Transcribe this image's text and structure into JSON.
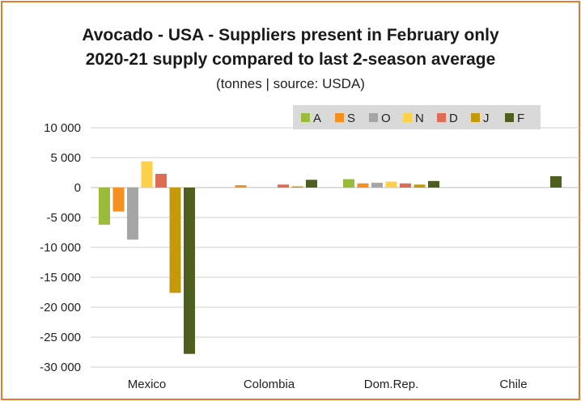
{
  "colors": {
    "A": "#9bbb3b",
    "S": "#f5901e",
    "O": "#a5a5a5",
    "N": "#fdd24a",
    "D": "#e06c55",
    "J": "#c59a0a",
    "F": "#4e5e1e",
    "frame": "#e37b2c",
    "legend_bg": "#d9d9d9",
    "grid": "#d0d0d0"
  },
  "chart_data": {
    "type": "bar",
    "title": "Avocado - USA - Suppliers present in February only",
    "title_line2": "2020-21 supply compared to last 2-season average",
    "subtitle": "(tonnes | source: USDA)",
    "categories": [
      "Mexico",
      "Colombia",
      "Dom.Rep.",
      "Chile"
    ],
    "series": [
      {
        "name": "A",
        "values": [
          -6200,
          0,
          1400,
          0
        ]
      },
      {
        "name": "S",
        "values": [
          -4000,
          400,
          700,
          0
        ]
      },
      {
        "name": "O",
        "values": [
          -8700,
          0,
          800,
          0
        ]
      },
      {
        "name": "N",
        "values": [
          4400,
          0,
          1000,
          0
        ]
      },
      {
        "name": "D",
        "values": [
          2300,
          500,
          700,
          0
        ]
      },
      {
        "name": "J",
        "values": [
          -17600,
          200,
          500,
          0
        ]
      },
      {
        "name": "F",
        "values": [
          -27800,
          1300,
          1100,
          1900
        ]
      }
    ],
    "ylim": [
      -30000,
      10000
    ],
    "yticks": [
      10000,
      5000,
      0,
      -5000,
      -10000,
      -15000,
      -20000,
      -25000,
      -30000
    ],
    "ytick_labels": [
      "10 000",
      "5 000",
      "0",
      "-5 000",
      "-10 000",
      "-15 000",
      "-20 000",
      "-25 000",
      "-30 000"
    ],
    "grid": true,
    "legend_position": "top-right"
  }
}
